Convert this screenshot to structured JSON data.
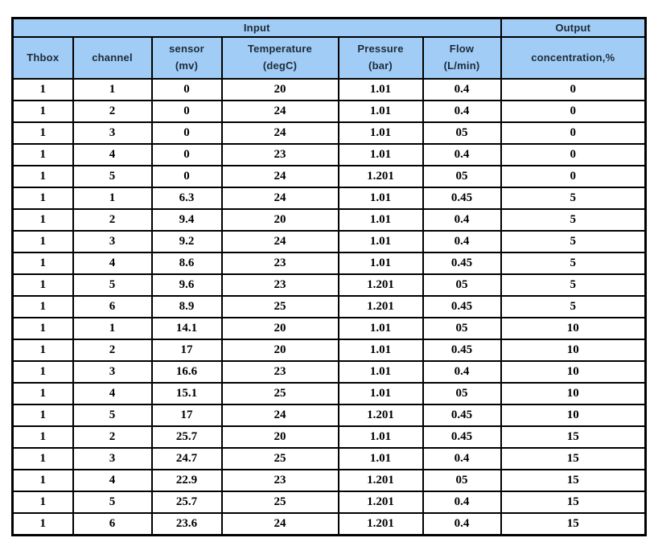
{
  "table": {
    "colors": {
      "header_bg": "#A1CCF5",
      "header_text": "#1c2b3a",
      "border": "#000000",
      "body_text": "#000000",
      "page_bg": "#ffffff"
    },
    "groups": [
      {
        "label": "Input",
        "colspan": 6
      },
      {
        "label": "Output",
        "colspan": 1
      }
    ],
    "columns": [
      {
        "label": "Thbox",
        "sub": ""
      },
      {
        "label": "channel",
        "sub": ""
      },
      {
        "label": "sensor",
        "sub": "(mv)"
      },
      {
        "label": "Temperature",
        "sub": "(degC)"
      },
      {
        "label": "Pressure",
        "sub": "(bar)"
      },
      {
        "label": "Flow",
        "sub": "(L/min)"
      },
      {
        "label": "concentration,%",
        "sub": ""
      }
    ],
    "rows": [
      [
        "1",
        "1",
        "0",
        "20",
        "1.01",
        "0.4",
        "0"
      ],
      [
        "1",
        "2",
        "0",
        "24",
        "1.01",
        "0.4",
        "0"
      ],
      [
        "1",
        "3",
        "0",
        "24",
        "1.01",
        "05",
        "0"
      ],
      [
        "1",
        "4",
        "0",
        "23",
        "1.01",
        "0.4",
        "0"
      ],
      [
        "1",
        "5",
        "0",
        "24",
        "1.201",
        "05",
        "0"
      ],
      [
        "1",
        "1",
        "6.3",
        "24",
        "1.01",
        "0.45",
        "5"
      ],
      [
        "1",
        "2",
        "9.4",
        "20",
        "1.01",
        "0.4",
        "5"
      ],
      [
        "1",
        "3",
        "9.2",
        "24",
        "1.01",
        "0.4",
        "5"
      ],
      [
        "1",
        "4",
        "8.6",
        "23",
        "1.01",
        "0.45",
        "5"
      ],
      [
        "1",
        "5",
        "9.6",
        "23",
        "1.201",
        "05",
        "5"
      ],
      [
        "1",
        "6",
        "8.9",
        "25",
        "1.201",
        "0.45",
        "5"
      ],
      [
        "1",
        "1",
        "14.1",
        "20",
        "1.01",
        "05",
        "10"
      ],
      [
        "1",
        "2",
        "17",
        "20",
        "1.01",
        "0.45",
        "10"
      ],
      [
        "1",
        "3",
        "16.6",
        "23",
        "1.01",
        "0.4",
        "10"
      ],
      [
        "1",
        "4",
        "15.1",
        "25",
        "1.01",
        "05",
        "10"
      ],
      [
        "1",
        "5",
        "17",
        "24",
        "1.201",
        "0.45",
        "10"
      ],
      [
        "1",
        "2",
        "25.7",
        "20",
        "1.01",
        "0.45",
        "15"
      ],
      [
        "1",
        "3",
        "24.7",
        "25",
        "1.01",
        "0.4",
        "15"
      ],
      [
        "1",
        "4",
        "22.9",
        "23",
        "1.201",
        "05",
        "15"
      ],
      [
        "1",
        "5",
        "25.7",
        "25",
        "1.201",
        "0.4",
        "15"
      ],
      [
        "1",
        "6",
        "23.6",
        "24",
        "1.201",
        "0.4",
        "15"
      ]
    ]
  }
}
